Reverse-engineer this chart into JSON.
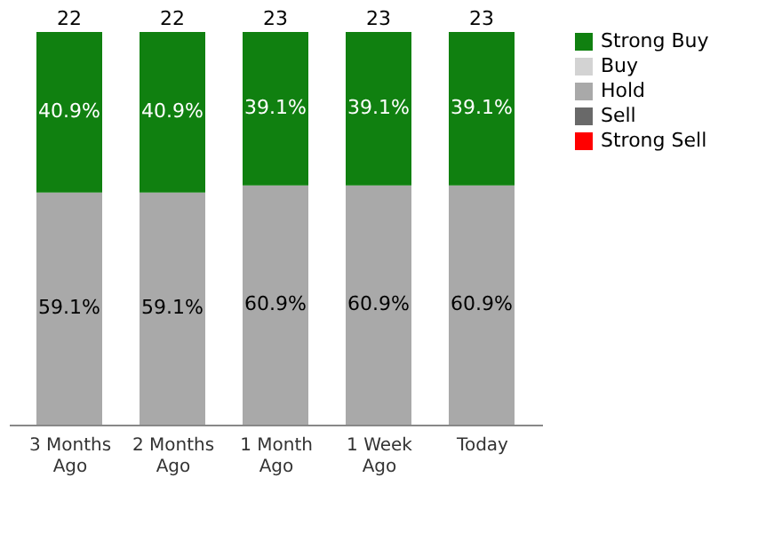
{
  "chart_data": {
    "type": "bar",
    "stacked": true,
    "legend": "right",
    "grid": false,
    "tick_labels": "x",
    "categories": [
      "3 Months Ago",
      "2 Months Ago",
      "1 Month Ago",
      "1 Week Ago",
      "Today"
    ],
    "series": [
      {
        "name": "Strong Sell",
        "color": "#ff0000",
        "values": [
          null,
          null,
          null,
          null,
          null
        ]
      },
      {
        "name": "Sell",
        "color": "#696969",
        "values": [
          null,
          null,
          null,
          null,
          null
        ]
      },
      {
        "name": "Hold",
        "color": "#a9a9a9",
        "values": [
          59.1,
          59.1,
          60.9,
          60.9,
          60.9
        ],
        "value_labels": [
          "59.1%",
          "59.1%",
          "60.9%",
          "60.9%",
          "60.9%"
        ]
      },
      {
        "name": "Buy",
        "color": "#d3d3d3",
        "values": [
          null,
          null,
          null,
          null,
          null
        ]
      },
      {
        "name": "Strong Buy",
        "color": "#108010",
        "values": [
          40.9,
          40.9,
          39.1,
          39.1,
          39.1
        ],
        "value_labels": [
          "40.9%",
          "40.9%",
          "39.1%",
          "39.1%",
          "39.1%"
        ]
      }
    ],
    "annotations": [
      {
        "text": "22",
        "x": "3 Months Ago",
        "y": 100
      },
      {
        "text": "22",
        "x": "2 Months Ago",
        "y": 100
      },
      {
        "text": "23",
        "x": "1 Month Ago",
        "y": 100
      },
      {
        "text": "23",
        "x": "1 Week Ago",
        "y": 100
      },
      {
        "text": "23",
        "x": "Today",
        "y": 100
      }
    ]
  }
}
